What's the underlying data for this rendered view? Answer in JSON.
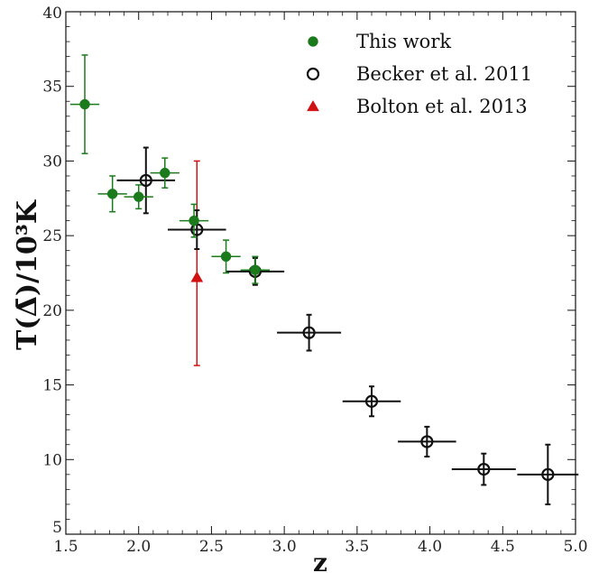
{
  "chart_data": {
    "type": "scatter",
    "xlabel": "z",
    "ylabel": "T(Δ̄)/10³K",
    "xlim": [
      1.5,
      5.0
    ],
    "ylim": [
      5,
      40
    ],
    "x_ticks": [
      "1.5",
      "2.0",
      "2.5",
      "3.0",
      "3.5",
      "4.0",
      "4.5",
      "5.0"
    ],
    "y_ticks": [
      "5",
      "10",
      "15",
      "20",
      "25",
      "30",
      "35",
      "40"
    ],
    "legend_position": "top-right",
    "series": [
      {
        "name": "This work",
        "marker": "filled-circle",
        "color": "#1b7a1b",
        "points": [
          {
            "x": 1.63,
            "y": 33.8,
            "xerr": 0.1,
            "yerr_low": 3.3,
            "yerr_high": 3.3
          },
          {
            "x": 1.82,
            "y": 27.8,
            "xerr": 0.1,
            "yerr_low": 1.2,
            "yerr_high": 1.2
          },
          {
            "x": 2.0,
            "y": 27.6,
            "xerr": 0.1,
            "yerr_low": 0.8,
            "yerr_high": 0.8
          },
          {
            "x": 2.18,
            "y": 29.2,
            "xerr": 0.1,
            "yerr_low": 1.0,
            "yerr_high": 1.0
          },
          {
            "x": 2.38,
            "y": 26.0,
            "xerr": 0.1,
            "yerr_low": 1.1,
            "yerr_high": 1.1
          },
          {
            "x": 2.6,
            "y": 23.6,
            "xerr": 0.1,
            "yerr_low": 1.1,
            "yerr_high": 1.1
          },
          {
            "x": 2.8,
            "y": 22.7,
            "xerr": 0.1,
            "yerr_low": 0.9,
            "yerr_high": 0.9
          }
        ]
      },
      {
        "name": "Becker et al. 2011",
        "marker": "open-circle",
        "color": "#111111",
        "points": [
          {
            "x": 2.05,
            "y": 28.7,
            "xerr": 0.2,
            "yerr_low": 2.2,
            "yerr_high": 2.2
          },
          {
            "x": 2.4,
            "y": 25.4,
            "xerr": 0.2,
            "yerr_low": 1.3,
            "yerr_high": 1.3
          },
          {
            "x": 2.8,
            "y": 22.6,
            "xerr": 0.2,
            "yerr_low": 0.9,
            "yerr_high": 0.9
          },
          {
            "x": 3.17,
            "y": 18.5,
            "xerr": 0.22,
            "yerr_low": 1.2,
            "yerr_high": 1.2
          },
          {
            "x": 3.6,
            "y": 13.9,
            "xerr": 0.2,
            "yerr_low": 1.0,
            "yerr_high": 1.0
          },
          {
            "x": 3.98,
            "y": 11.2,
            "xerr": 0.2,
            "yerr_low": 1.0,
            "yerr_high": 1.0
          },
          {
            "x": 4.37,
            "y": 9.35,
            "xerr": 0.22,
            "yerr_low": 1.05,
            "yerr_high": 1.05
          },
          {
            "x": 4.81,
            "y": 9.0,
            "xerr": 0.21,
            "yerr_low": 2.0,
            "yerr_high": 2.0
          }
        ]
      },
      {
        "name": "Bolton et al. 2013",
        "marker": "filled-triangle",
        "color": "#d11212",
        "points": [
          {
            "x": 2.4,
            "y": 22.2,
            "xerr": 0,
            "yerr_low": 5.9,
            "yerr_high": 7.8
          }
        ]
      }
    ]
  }
}
